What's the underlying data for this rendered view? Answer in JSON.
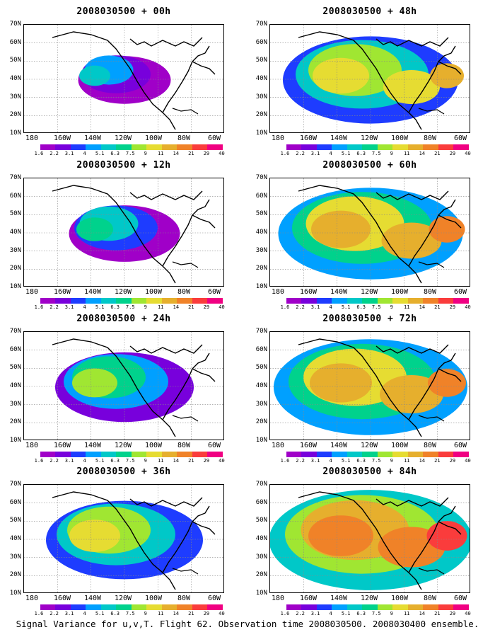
{
  "panels": [
    {
      "title": "2008030500 + 00h"
    },
    {
      "title": "2008030500 + 48h"
    },
    {
      "title": "2008030500 + 12h"
    },
    {
      "title": "2008030500 + 60h"
    },
    {
      "title": "2008030500 + 24h"
    },
    {
      "title": "2008030500 + 72h"
    },
    {
      "title": "2008030500 + 36h"
    },
    {
      "title": "2008030500 + 84h"
    }
  ],
  "lat_labels": [
    "70N",
    "60N",
    "50N",
    "40N",
    "30N",
    "20N",
    "10N"
  ],
  "lon_labels": [
    "180",
    "160W",
    "140W",
    "120W",
    "100W",
    "80W",
    "60W"
  ],
  "colorbar": {
    "labels": [
      "1.6",
      "2.2",
      "3.1",
      "4",
      "5.1",
      "6.3",
      "7.5",
      "9",
      "11",
      "14",
      "21",
      "29",
      "40"
    ],
    "colors": [
      "#ffffff",
      "#a000c8",
      "#7800dc",
      "#1e3cff",
      "#00a0ff",
      "#00c8c8",
      "#00d28c",
      "#a0e632",
      "#e6dc32",
      "#e6af2d",
      "#f08228",
      "#fa3c3c",
      "#f00082"
    ]
  },
  "caption": "Signal Variance for u,v,T. Flight 62. Observation time 2008030500. 2008030400 ensemble."
}
